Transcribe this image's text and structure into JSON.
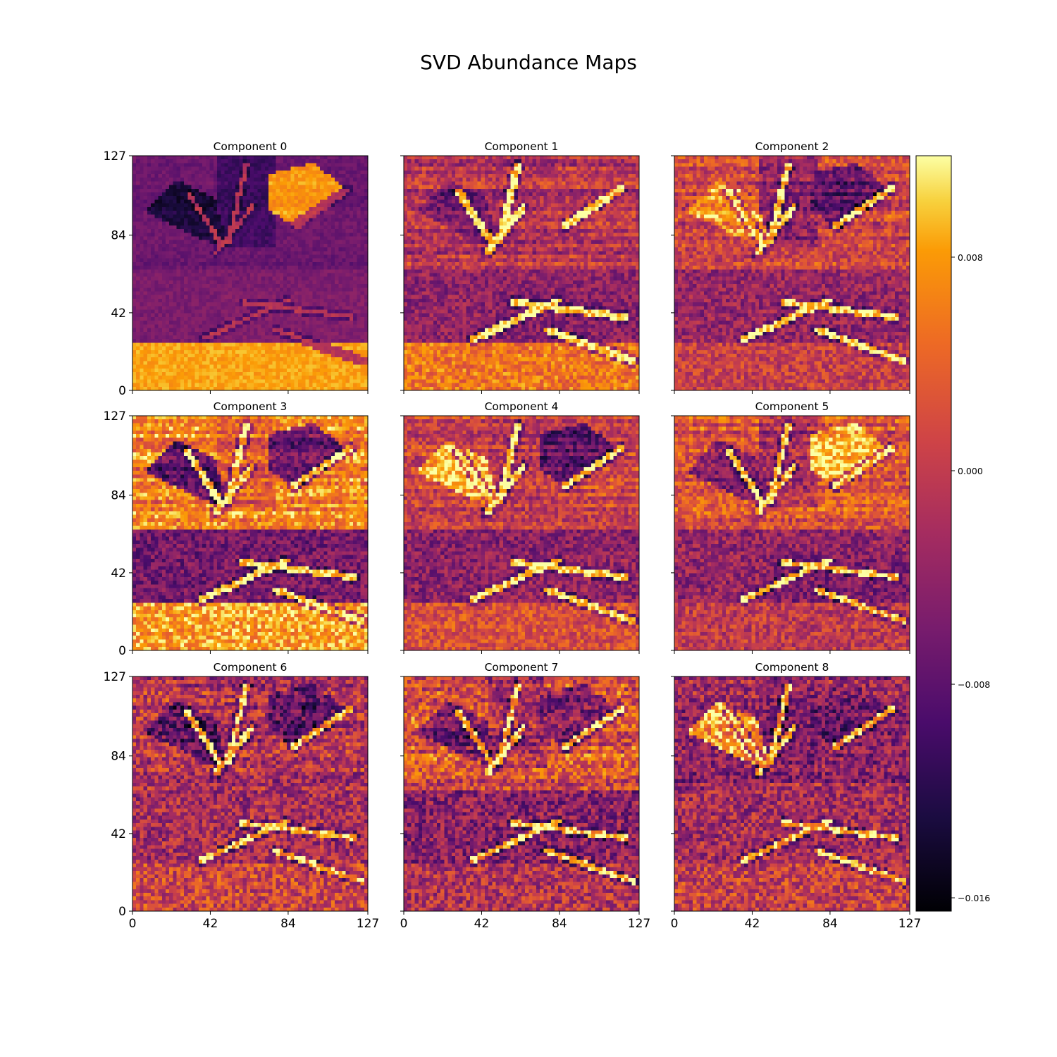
{
  "figure": {
    "title": "SVD Abundance Maps"
  },
  "chart_data": {
    "type": "heatmap",
    "title": "SVD Abundance Maps",
    "colormap": "inferno",
    "grid": false,
    "image_size": [
      128,
      128
    ],
    "xlim": [
      0,
      127
    ],
    "ylim": [
      0,
      127
    ],
    "x_ticks": [
      "0",
      "42",
      "84",
      "127"
    ],
    "y_ticks": [
      "0",
      "42",
      "84",
      "127"
    ],
    "colorbar": {
      "range": [
        -0.0165,
        0.0118
      ],
      "ticks": [
        {
          "value": 0.008,
          "label": "0.008"
        },
        {
          "value": 0.0,
          "label": "0.000"
        },
        {
          "value": -0.008,
          "label": "−0.008"
        },
        {
          "value": -0.016,
          "label": "−0.016"
        }
      ],
      "placement": "right"
    },
    "panels": [
      {
        "title": "Component 0"
      },
      {
        "title": "Component 1"
      },
      {
        "title": "Component 2"
      },
      {
        "title": "Component 3"
      },
      {
        "title": "Component 4"
      },
      {
        "title": "Component 5"
      },
      {
        "title": "Component 6"
      },
      {
        "title": "Component 7"
      },
      {
        "title": "Component 8"
      }
    ]
  }
}
